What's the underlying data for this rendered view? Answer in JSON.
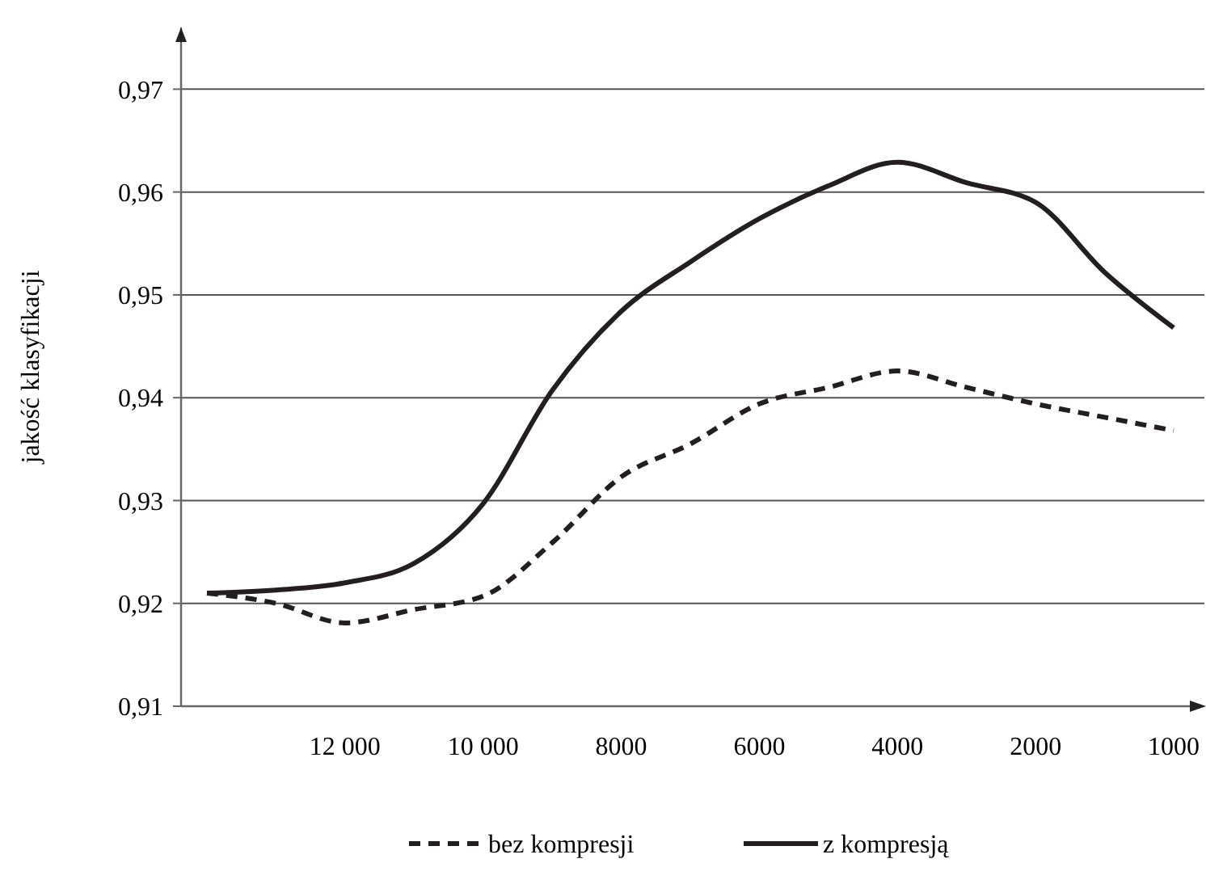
{
  "chart_data": {
    "type": "line",
    "ylabel": "jakość klasyfikacji",
    "categories": [
      null,
      null,
      "12 000",
      null,
      "10 000",
      null,
      "8000",
      null,
      "6000",
      null,
      "4000",
      null,
      "2000",
      null,
      "1000"
    ],
    "series": [
      {
        "name": "bez kompresji",
        "color": "#231f20",
        "line_style": "dashed",
        "values": [
          0.921,
          0.92,
          0.9181,
          0.9194,
          0.9207,
          0.9259,
          0.9323,
          0.9355,
          0.9394,
          0.941,
          0.9426,
          0.941,
          0.9394,
          0.9381,
          0.9368
        ]
      },
      {
        "name": "z kompresją",
        "color": "#231f20",
        "line_style": "solid",
        "values": [
          0.921,
          0.9213,
          0.922,
          0.9239,
          0.9297,
          0.9407,
          0.9484,
          0.9532,
          0.9574,
          0.9606,
          0.9629,
          0.9609,
          0.959,
          0.9522,
          0.9468
        ]
      }
    ],
    "ylim": [
      0.91,
      0.976
    ],
    "yticks": [
      {
        "value": 0.91,
        "label": "0,91"
      },
      {
        "value": 0.92,
        "label": "0,92"
      },
      {
        "value": 0.93,
        "label": "0,93"
      },
      {
        "value": 0.94,
        "label": "0,94"
      },
      {
        "value": 0.95,
        "label": "0,95"
      },
      {
        "value": 0.96,
        "label": "0,96"
      },
      {
        "value": 0.97,
        "label": "0,97"
      }
    ],
    "grid": "y",
    "legend": "bottom"
  }
}
